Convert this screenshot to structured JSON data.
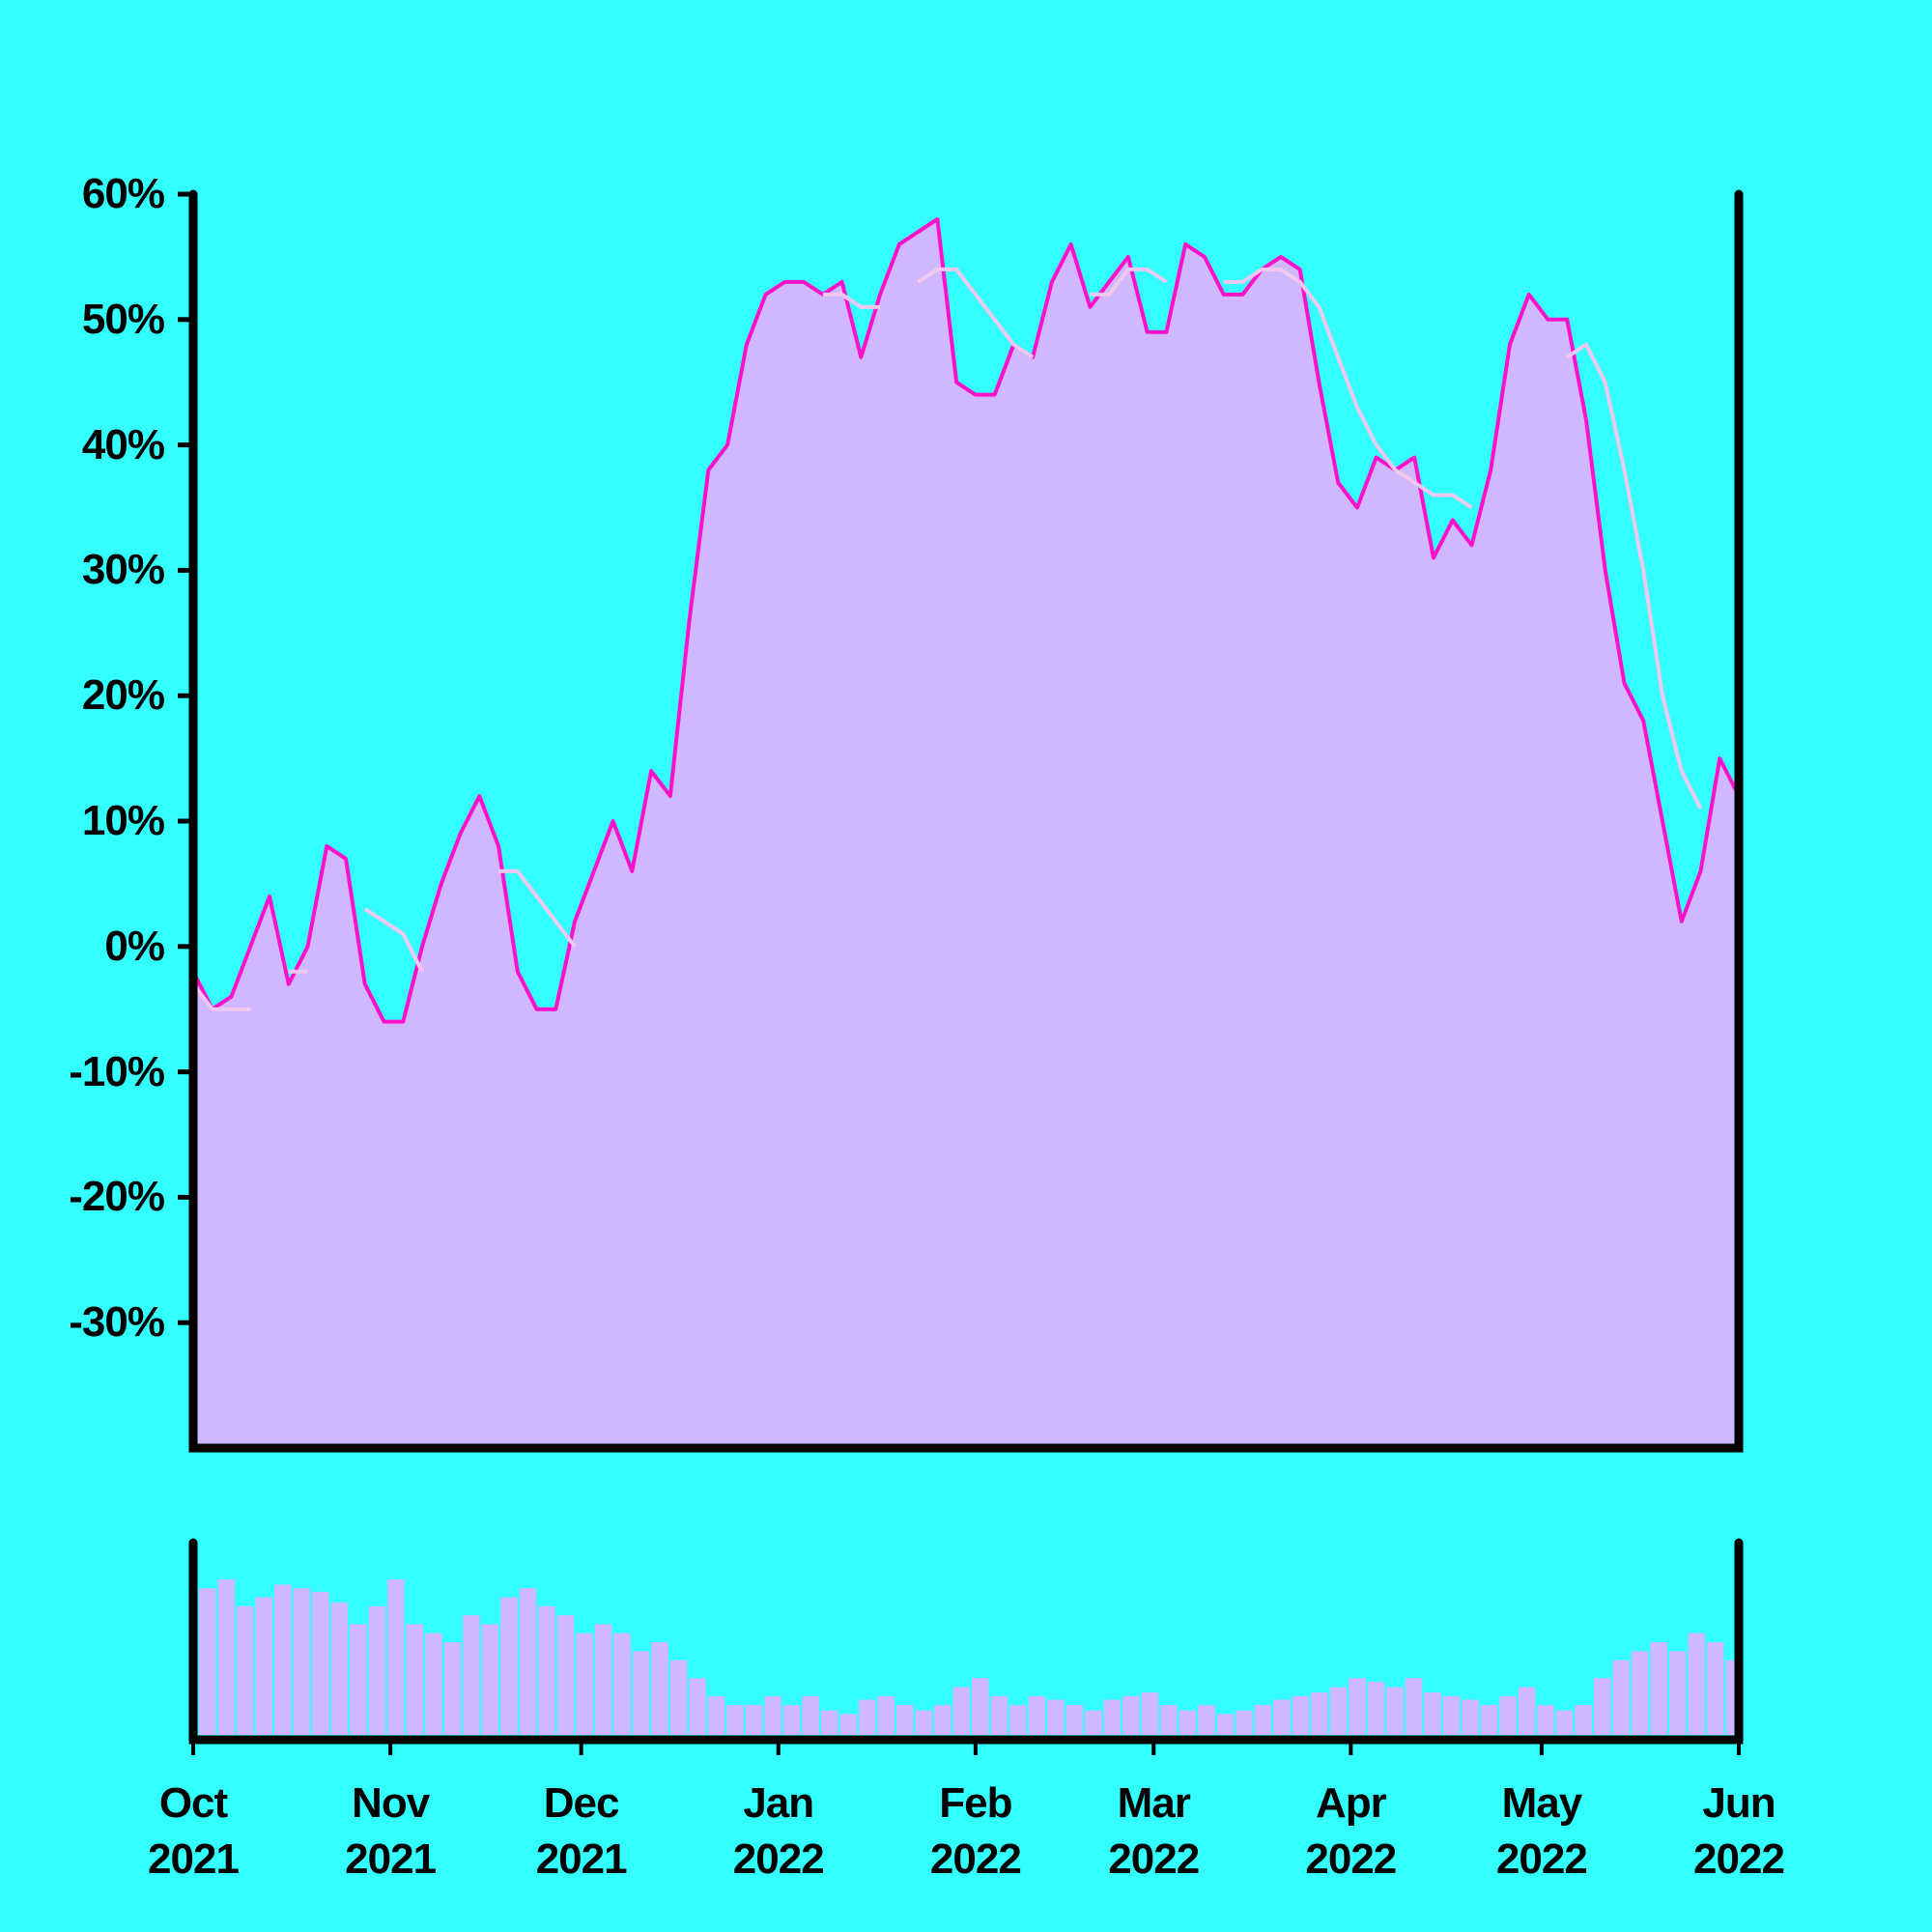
{
  "chart_data": [
    {
      "type": "area",
      "x": [
        0,
        3,
        6,
        9,
        12,
        15,
        18,
        21,
        24,
        27,
        30,
        33,
        36,
        39,
        42,
        45,
        48,
        51,
        54,
        57,
        60,
        63,
        66,
        69,
        72,
        75,
        78,
        81,
        84,
        87,
        90,
        93,
        96,
        99,
        102,
        105,
        108,
        111,
        114,
        117,
        120,
        123,
        126,
        129,
        132,
        135,
        138,
        141,
        144,
        147,
        150,
        153,
        156,
        159,
        162,
        165,
        168,
        171,
        174,
        177,
        180,
        183,
        186,
        189,
        192,
        195,
        198,
        201,
        204,
        207,
        210,
        213,
        216,
        219,
        222,
        225,
        228,
        231,
        234,
        237,
        240,
        243
      ],
      "series": [
        {
          "color": "#ff11cc",
          "fill": "#d0b8ff",
          "values": [
            -2,
            -5,
            -4,
            0,
            4,
            -3,
            0,
            8,
            7,
            -3,
            -6,
            -6,
            0,
            5,
            9,
            12,
            8,
            -2,
            -5,
            -5,
            2,
            6,
            10,
            6,
            14,
            12,
            26,
            38,
            40,
            48,
            52,
            53,
            53,
            52,
            53,
            47,
            52,
            56,
            57,
            58,
            45,
            44,
            44,
            48,
            47,
            53,
            56,
            51,
            53,
            55,
            49,
            49,
            56,
            55,
            52,
            52,
            54,
            55,
            54,
            45,
            37,
            35,
            39,
            38,
            39,
            31,
            34,
            32,
            38,
            48,
            52,
            50,
            50,
            42,
            30,
            21,
            18,
            10,
            2,
            6,
            15,
            12
          ]
        },
        {
          "color": "#f0c8ee",
          "values": [
            -3,
            -5,
            -5,
            -5,
            null,
            -2,
            -2,
            null,
            null,
            3,
            2,
            1,
            -2,
            null,
            null,
            null,
            6,
            6,
            4,
            2,
            0,
            null,
            null,
            null,
            null,
            null,
            null,
            null,
            null,
            null,
            null,
            null,
            null,
            52,
            52,
            51,
            51,
            null,
            53,
            54,
            54,
            52,
            50,
            48,
            47,
            null,
            null,
            52,
            52,
            54,
            54,
            53,
            null,
            null,
            53,
            53,
            54,
            54,
            53,
            51,
            47,
            43,
            40,
            38,
            37,
            36,
            36,
            35,
            null,
            null,
            null,
            null,
            47,
            48,
            45,
            38,
            30,
            20,
            14,
            11,
            null,
            null
          ]
        }
      ],
      "xlim": [
        0,
        243
      ],
      "ylim": [
        -40,
        60
      ],
      "yticks": [
        {
          "value": -30,
          "label": "-30%"
        },
        {
          "value": -20,
          "label": "-20%"
        },
        {
          "value": -10,
          "label": "-10%"
        },
        {
          "value": 0,
          "label": "0%"
        },
        {
          "value": 10,
          "label": "10%"
        },
        {
          "value": 20,
          "label": "20%"
        },
        {
          "value": 30,
          "label": "30%"
        },
        {
          "value": 40,
          "label": "40%"
        },
        {
          "value": 50,
          "label": "50%"
        },
        {
          "value": 60,
          "label": "60%"
        }
      ],
      "xticks": [
        {
          "value": 0,
          "label": "Oct 2021"
        },
        {
          "value": 31,
          "label": "Nov 2021"
        },
        {
          "value": 61,
          "label": "Dec 2021"
        },
        {
          "value": 92,
          "label": "Jan 2022"
        },
        {
          "value": 123,
          "label": "Feb 2022"
        },
        {
          "value": 151,
          "label": "Mar 2022"
        },
        {
          "value": 182,
          "label": "Apr 2022"
        },
        {
          "value": 212,
          "label": "May 2022"
        },
        {
          "value": 243,
          "label": "Jun 2022"
        }
      ]
    },
    {
      "type": "bar",
      "color": "#d0b8ff",
      "values": [
        80,
        85,
        70,
        75,
        82,
        80,
        78,
        72,
        60,
        70,
        85,
        60,
        55,
        50,
        65,
        60,
        75,
        80,
        70,
        65,
        55,
        60,
        55,
        45,
        50,
        40,
        30,
        20,
        15,
        15,
        20,
        15,
        20,
        12,
        10,
        18,
        20,
        15,
        12,
        15,
        25,
        30,
        20,
        15,
        20,
        18,
        15,
        12,
        18,
        20,
        22,
        15,
        12,
        15,
        10,
        12,
        15,
        18,
        20,
        22,
        25,
        30,
        28,
        25,
        30,
        22,
        20,
        18,
        15,
        20,
        25,
        15,
        12,
        15,
        30,
        40,
        45,
        50,
        45,
        55,
        50,
        40
      ],
      "ylim": [
        0,
        100
      ]
    }
  ]
}
